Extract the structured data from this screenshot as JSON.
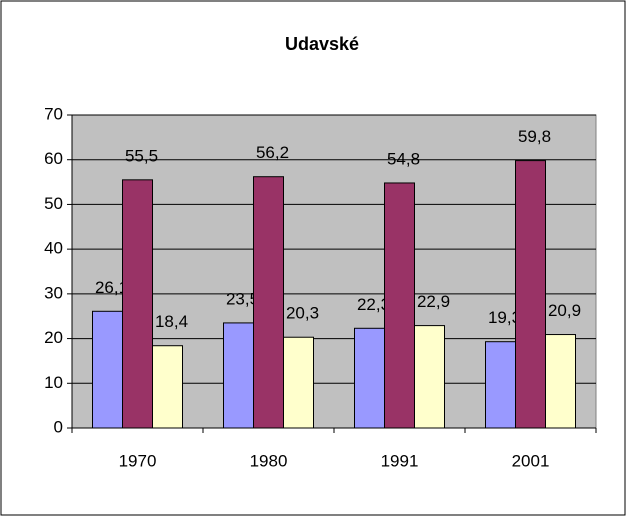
{
  "chart_data": {
    "type": "bar",
    "title": "Udavské",
    "categories": [
      "1970",
      "1980",
      "1991",
      "2001"
    ],
    "series": [
      {
        "color": "#9999ff",
        "values": [
          26.1,
          23.5,
          22.3,
          19.3
        ],
        "value_labels": [
          "26,1",
          "23,5",
          "22,3",
          "19,3"
        ]
      },
      {
        "color": "#993366",
        "values": [
          55.5,
          56.2,
          54.8,
          59.8
        ],
        "value_labels": [
          "55,5",
          "56,2",
          "54,8",
          "59,8"
        ]
      },
      {
        "color": "#ffffcc",
        "values": [
          18.4,
          20.3,
          22.9,
          20.9
        ],
        "value_labels": [
          "18,4",
          "20,3",
          "22,9",
          "20,9"
        ]
      }
    ],
    "ylim": [
      0,
      70
    ],
    "yticks": [
      0,
      10,
      20,
      30,
      40,
      50,
      60,
      70
    ],
    "grid": true,
    "plot_background": "#c0c0c0"
  }
}
